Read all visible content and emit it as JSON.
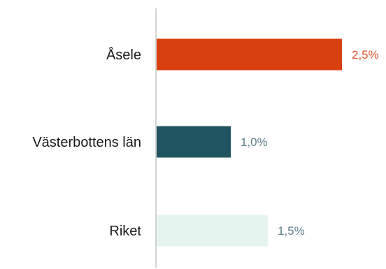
{
  "chart_data": {
    "type": "bar",
    "orientation": "horizontal",
    "categories": [
      "Åsele",
      "Västerbottens län",
      "Riket"
    ],
    "values": [
      2.5,
      1.0,
      1.5
    ],
    "value_labels": [
      "2,5%",
      "1,0%",
      "1,5%"
    ],
    "xlim": [
      0,
      3.0
    ],
    "grid": false,
    "legend": "none",
    "title": "",
    "xlabel": "",
    "ylabel": "",
    "colors": [
      "#D9400F",
      "#1F5460",
      "#E6F4F0"
    ],
    "label_colors": [
      "#D9572B",
      "#5E7F89",
      "#5E7F89"
    ]
  }
}
